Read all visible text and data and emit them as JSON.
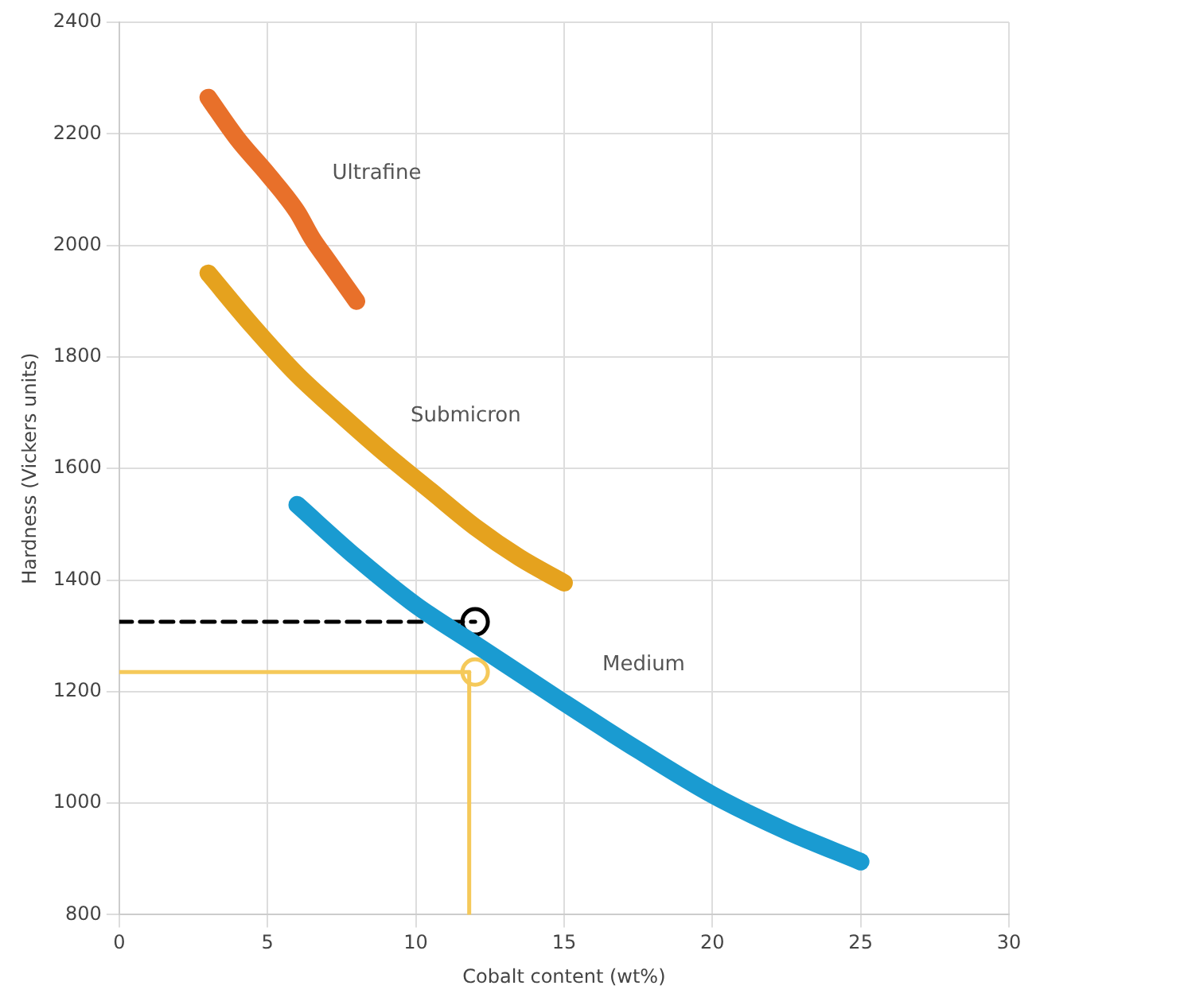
{
  "chart_data": {
    "type": "line",
    "xlabel": "Cobalt content (wt%)",
    "ylabel": "Hardness (Vickers units)",
    "xlim": [
      0,
      30
    ],
    "xticks": [
      0,
      5,
      10,
      15,
      20,
      25,
      30
    ],
    "ylim": [
      800,
      2400
    ],
    "yticks": [
      800,
      1000,
      1200,
      1400,
      1600,
      1800,
      2000,
      2200,
      2400
    ],
    "grid": true,
    "legend": false,
    "series": [
      {
        "type": "line",
        "name": "Ultrafine",
        "color": "#e8702a",
        "marker": "none",
        "x": [
          3,
          4,
          5,
          6,
          6.5,
          7,
          8
        ],
        "values": [
          2265,
          2190,
          2128,
          2060,
          2013,
          1975,
          1900
        ]
      },
      {
        "type": "line",
        "name": "Submicron",
        "color": "#e5a21e",
        "marker": "none",
        "x": [
          3,
          4.5,
          6,
          7.5,
          9,
          10.5,
          12,
          13.5,
          15
        ],
        "values": [
          1950,
          1855,
          1768,
          1695,
          1625,
          1560,
          1495,
          1440,
          1395
        ]
      },
      {
        "type": "line",
        "name": "Medium",
        "color": "#1a9bd1",
        "marker": "none",
        "x": [
          6,
          8,
          10,
          12,
          15,
          17.5,
          20,
          22.5,
          25
        ],
        "values": [
          1535,
          1440,
          1355,
          1285,
          1180,
          1095,
          1015,
          950,
          895
        ]
      },
      {
        "type": "line",
        "color": "#000000",
        "marker": "none",
        "line_style": "dashed",
        "x": [
          0,
          12
        ],
        "values": [
          1325,
          1325
        ]
      },
      {
        "type": "line",
        "color": "#f5c95a",
        "marker": "none",
        "line_style": "solid",
        "x": [
          0,
          11.8
        ],
        "values": [
          1235,
          1235
        ]
      },
      {
        "type": "line",
        "color": "#f5c95a",
        "marker": "none",
        "line_style": "solid",
        "x": [
          11.8,
          11.8
        ],
        "values": [
          800,
          1235
        ]
      },
      {
        "type": "scatter",
        "color": "#000000",
        "marker": "circle",
        "x": [
          12
        ],
        "values": [
          1325
        ]
      },
      {
        "type": "scatter",
        "color": "#f5c95a",
        "marker": "circle",
        "x": [
          12
        ],
        "values": [
          1235
        ]
      }
    ]
  }
}
